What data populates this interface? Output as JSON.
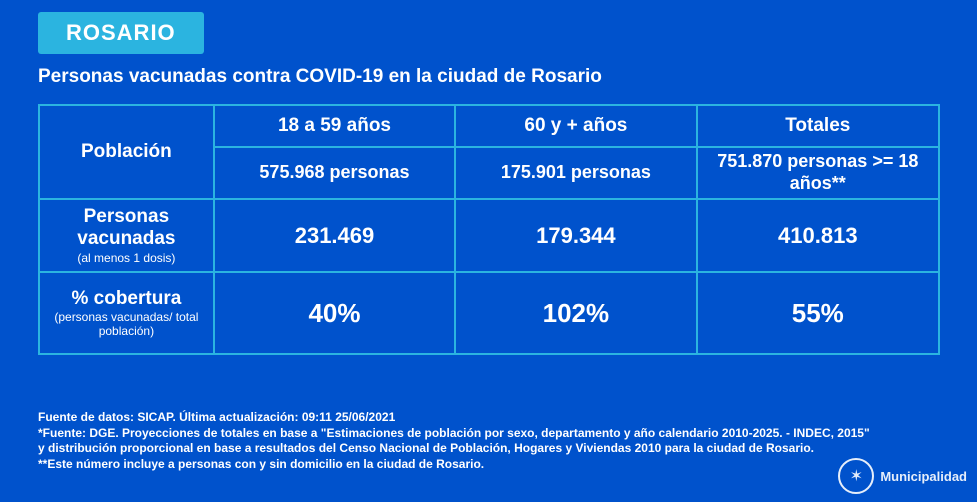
{
  "badge": "ROSARIO",
  "subtitle": "Personas vacunadas contra COVID-19 en la ciudad de Rosario",
  "table": {
    "row_labels": {
      "poblacion": "Población",
      "vacunadas": {
        "main": "Personas vacunadas",
        "sub": "(al menos 1 dosis)"
      },
      "cobertura": {
        "main": "% cobertura",
        "sub": "(personas vacunadas/ total población)"
      }
    },
    "columns": {
      "a": {
        "header": "18 a 59 años",
        "population": "575.968 personas",
        "vaccinated": "231.469",
        "coverage": "40%"
      },
      "b": {
        "header": "60 y + años",
        "population": "175.901 personas",
        "vaccinated": "179.344",
        "coverage": "102%"
      },
      "c": {
        "header": "Totales",
        "population": "751.870 personas >= 18 años**",
        "vaccinated": "410.813",
        "coverage": "55%"
      }
    }
  },
  "footer": {
    "line1": "Fuente de datos: SICAP. Última actualización: 09:11  25/06/2021",
    "line2": "*Fuente:  DGE. Proyecciones de totales en base a \"Estimaciones de población por sexo, departamento y año calendario 2010-2025. - INDEC, 2015\" y distribución proporcional en base a resultados del Censo Nacional de Población, Hogares y Viviendas 2010 para la ciudad de Rosario.",
    "line3": "**Este número incluye a personas con y sin domicilio en la ciudad de Rosario."
  },
  "logo_text": "Municipalidad",
  "colors": {
    "background": "#0052cc",
    "accent": "#2bb4e0",
    "text": "#ffffff"
  }
}
